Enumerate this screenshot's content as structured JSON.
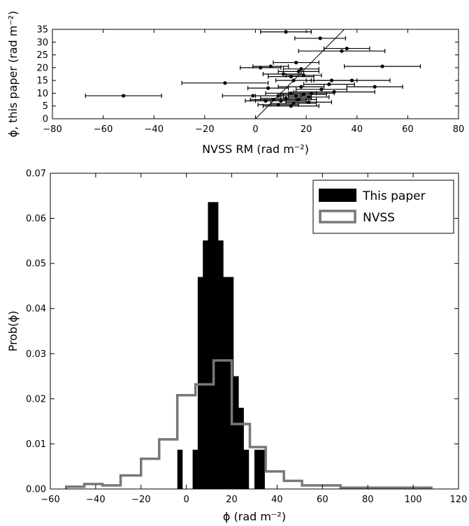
{
  "chart_data": [
    {
      "type": "scatter",
      "xlabel": "NVSS RM (rad m⁻²)",
      "ylabel": "ϕ, this paper (rad m⁻²)",
      "xlim": [
        -80,
        80
      ],
      "ylim": [
        0,
        35
      ],
      "xticks": [
        "−80",
        "−60",
        "−40",
        "−20",
        "0",
        "20",
        "40",
        "60",
        "80"
      ],
      "yticks": [
        "0",
        "5",
        "10",
        "15",
        "20",
        "25",
        "30",
        "35"
      ],
      "reference_line": {
        "label": "y = x",
        "x": [
          0,
          35
        ],
        "y": [
          0,
          35
        ]
      },
      "points": [
        {
          "x": 12,
          "y": 34,
          "xerr": 10
        },
        {
          "x": 25.5,
          "y": 31.5,
          "xerr": 10
        },
        {
          "x": 36,
          "y": 27.5,
          "xerr": 9
        },
        {
          "x": 34,
          "y": 26.5,
          "xerr": 17
        },
        {
          "x": 50,
          "y": 20.5,
          "xerr": 15
        },
        {
          "x": 16,
          "y": 22,
          "xerr": 9
        },
        {
          "x": 6,
          "y": 20.5,
          "xerr": 7
        },
        {
          "x": 2,
          "y": 20,
          "xerr": 8
        },
        {
          "x": 18,
          "y": 19.5,
          "xerr": 7
        },
        {
          "x": 17,
          "y": 18.5,
          "xerr": 8
        },
        {
          "x": 11,
          "y": 17.5,
          "xerr": 8
        },
        {
          "x": 19,
          "y": 17,
          "xerr": 7
        },
        {
          "x": 14,
          "y": 16.5,
          "xerr": 9
        },
        {
          "x": 15,
          "y": 15,
          "xerr": 7
        },
        {
          "x": 38,
          "y": 15,
          "xerr": 15
        },
        {
          "x": 30,
          "y": 15,
          "xerr": 10
        },
        {
          "x": -12,
          "y": 14,
          "xerr": 17
        },
        {
          "x": 29,
          "y": 13.5,
          "xerr": 10
        },
        {
          "x": 47,
          "y": 12.5,
          "xerr": 11
        },
        {
          "x": 18,
          "y": 12.5,
          "xerr": 9
        },
        {
          "x": 5,
          "y": 12,
          "xerr": 8
        },
        {
          "x": 26,
          "y": 11.5,
          "xerr": 10
        },
        {
          "x": 31,
          "y": 10.5,
          "xerr": 16
        },
        {
          "x": 22,
          "y": 10,
          "xerr": 9
        },
        {
          "x": 14,
          "y": 10,
          "xerr": 10
        },
        {
          "x": 19,
          "y": 9.5,
          "xerr": 9
        },
        {
          "x": 9,
          "y": 9,
          "xerr": 9
        },
        {
          "x": 16,
          "y": 9,
          "xerr": 6
        },
        {
          "x": -52,
          "y": 9,
          "xerr": 15
        },
        {
          "x": -1,
          "y": 9,
          "xerr": 12
        },
        {
          "x": 21,
          "y": 8.5,
          "xerr": 8
        },
        {
          "x": 12,
          "y": 8,
          "xerr": 10
        },
        {
          "x": 7,
          "y": 7.5,
          "xerr": 9
        },
        {
          "x": 17,
          "y": 7.5,
          "xerr": 7
        },
        {
          "x": 10,
          "y": 7,
          "xerr": 10
        },
        {
          "x": 4,
          "y": 7,
          "xerr": 8
        },
        {
          "x": 21,
          "y": 6.5,
          "xerr": 9
        },
        {
          "x": 15,
          "y": 6,
          "xerr": 9
        },
        {
          "x": 9,
          "y": 5.5,
          "xerr": 8
        },
        {
          "x": 14,
          "y": 5,
          "xerr": 11
        }
      ]
    },
    {
      "type": "histogram",
      "xlabel": "ϕ (rad m⁻²)",
      "ylabel": "Prob(ϕ)",
      "xlim": [
        -60,
        120
      ],
      "ylim": [
        0,
        0.07
      ],
      "xticks": [
        "−60",
        "−40",
        "−20",
        "0",
        "20",
        "40",
        "60",
        "80",
        "100",
        "120"
      ],
      "yticks": [
        "0.00",
        "0.01",
        "0.02",
        "0.03",
        "0.04",
        "0.05",
        "0.06",
        "0.07"
      ],
      "legend": {
        "location": "top-right",
        "entries": [
          "This paper",
          "NVSS"
        ]
      },
      "series": [
        {
          "name": "This paper",
          "style": "filled",
          "color": "#000000",
          "bin_width": 2.25,
          "bins": [
            {
              "left": -4.0,
              "value": 0.0087
            },
            {
              "left": 2.75,
              "value": 0.0087
            },
            {
              "left": 5.0,
              "value": 0.047
            },
            {
              "left": 7.25,
              "value": 0.0551
            },
            {
              "left": 9.5,
              "value": 0.0636
            },
            {
              "left": 11.75,
              "value": 0.0636
            },
            {
              "left": 14.0,
              "value": 0.0551
            },
            {
              "left": 16.25,
              "value": 0.047
            },
            {
              "left": 18.5,
              "value": 0.047
            },
            {
              "left": 20.75,
              "value": 0.025
            },
            {
              "left": 23.0,
              "value": 0.018
            },
            {
              "left": 25.25,
              "value": 0.0087
            },
            {
              "left": 30.0,
              "value": 0.0087
            },
            {
              "left": 32.25,
              "value": 0.0087
            }
          ]
        },
        {
          "name": "NVSS",
          "style": "step",
          "color": "#777777",
          "edges": [
            -53,
            -45,
            -37,
            -29,
            -20,
            -12,
            -4,
            4,
            12,
            20,
            28,
            35,
            43,
            51,
            60,
            68,
            76,
            84,
            92,
            100,
            108
          ],
          "values": [
            0.0005,
            0.0011,
            0.0008,
            0.003,
            0.0067,
            0.011,
            0.0208,
            0.0232,
            0.0285,
            0.0144,
            0.0093,
            0.0039,
            0.0018,
            0.0008,
            0.0008,
            0.0003,
            0.0003,
            0.0003,
            0.0003,
            0.0003
          ]
        }
      ]
    }
  ]
}
